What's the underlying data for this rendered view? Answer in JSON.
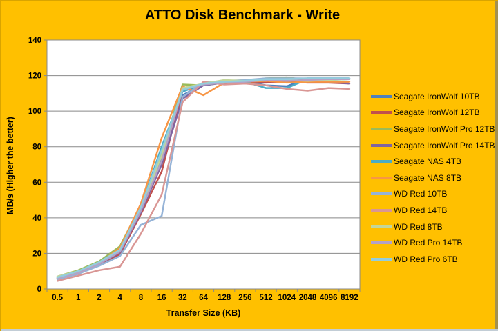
{
  "title": "ATTO Disk Benchmark - Write",
  "colors": {
    "background": "#FFC000",
    "plot_background": "#FFFFFF",
    "gridline": "#898989",
    "axis": "#898989",
    "text": "#000000"
  },
  "chart_data": {
    "type": "line",
    "title": "ATTO Disk Benchmark - Write",
    "xlabel": "Transfer Size (KB)",
    "ylabel": "MB/s (Higher the better)",
    "ylim": [
      0,
      140
    ],
    "yticks": [
      0,
      20,
      40,
      60,
      80,
      100,
      120,
      140
    ],
    "grid": true,
    "legend_position": "right",
    "categories": [
      "0.5",
      "1",
      "2",
      "4",
      "8",
      "16",
      "32",
      "64",
      "128",
      "256",
      "512",
      "1024",
      "2048",
      "4096",
      "8192"
    ],
    "series": [
      {
        "name": "Seagate IronWolf 10TB",
        "color": "#4F81BD",
        "values": [
          6.5,
          9.5,
          14.5,
          21,
          44,
          73,
          109,
          115,
          116.5,
          117,
          114.5,
          114,
          118.5,
          118.5,
          118.5
        ]
      },
      {
        "name": "Seagate IronWolf 12TB",
        "color": "#C0504D",
        "values": [
          5.5,
          8.5,
          13.5,
          19.5,
          42,
          66,
          112,
          115.5,
          115.5,
          116,
          116,
          116.5,
          116,
          116,
          115.5
        ]
      },
      {
        "name": "Seagate IronWolf Pro 12TB",
        "color": "#9BBB59",
        "values": [
          7,
          10.5,
          15.5,
          24,
          47,
          76,
          115,
          114.5,
          116,
          117,
          118.5,
          119,
          117.5,
          118,
          118
        ]
      },
      {
        "name": "Seagate IronWolf Pro 14TB",
        "color": "#8064A2",
        "values": [
          6,
          9,
          14,
          20.5,
          43,
          70,
          107,
          114.5,
          116,
          116.5,
          117,
          117,
          117.5,
          116.5,
          115.5
        ]
      },
      {
        "name": "Seagate NAS 4TB",
        "color": "#4BACC6",
        "values": [
          6.5,
          10,
          15,
          22.5,
          46,
          80,
          111,
          115,
          116,
          116.5,
          113,
          113,
          118,
          117.5,
          118
        ]
      },
      {
        "name": "Seagate NAS 8TB",
        "color": "#F79646",
        "values": [
          6,
          9.5,
          14.5,
          23,
          48,
          85,
          114,
          109,
          116,
          116.5,
          117,
          116,
          116.5,
          116.5,
          116.5
        ]
      },
      {
        "name": "WD Red 10TB",
        "color": "#95B3D7",
        "values": [
          5.5,
          8.5,
          13,
          18.5,
          36,
          41,
          108,
          116,
          117,
          117.5,
          118.5,
          118.5,
          118.5,
          118.5,
          118.5
        ]
      },
      {
        "name": "WD Red 14TB",
        "color": "#D99694",
        "values": [
          4.5,
          7.5,
          10.5,
          12.5,
          31,
          53,
          105,
          116.5,
          115,
          115.5,
          114.5,
          112.5,
          111.5,
          113,
          112.5
        ]
      },
      {
        "name": "WD Red 8TB",
        "color": "#C3D69B",
        "values": [
          7,
          10,
          15,
          22,
          45,
          75,
          113,
          115.5,
          117.5,
          117,
          117.5,
          117.5,
          117,
          117.5,
          118
        ]
      },
      {
        "name": "WD Red Pro 14TB",
        "color": "#B3A2C7",
        "values": [
          6,
          9,
          14,
          21,
          44,
          72,
          112,
          115,
          116,
          116.5,
          117.5,
          117,
          117.5,
          118,
          118
        ]
      },
      {
        "name": "WD Red Pro 6TB",
        "color": "#93CDDD",
        "values": [
          6.5,
          10,
          15,
          22,
          46,
          78,
          112,
          115.5,
          116.5,
          117,
          118,
          118,
          118.5,
          118.5,
          118.5
        ]
      }
    ]
  }
}
